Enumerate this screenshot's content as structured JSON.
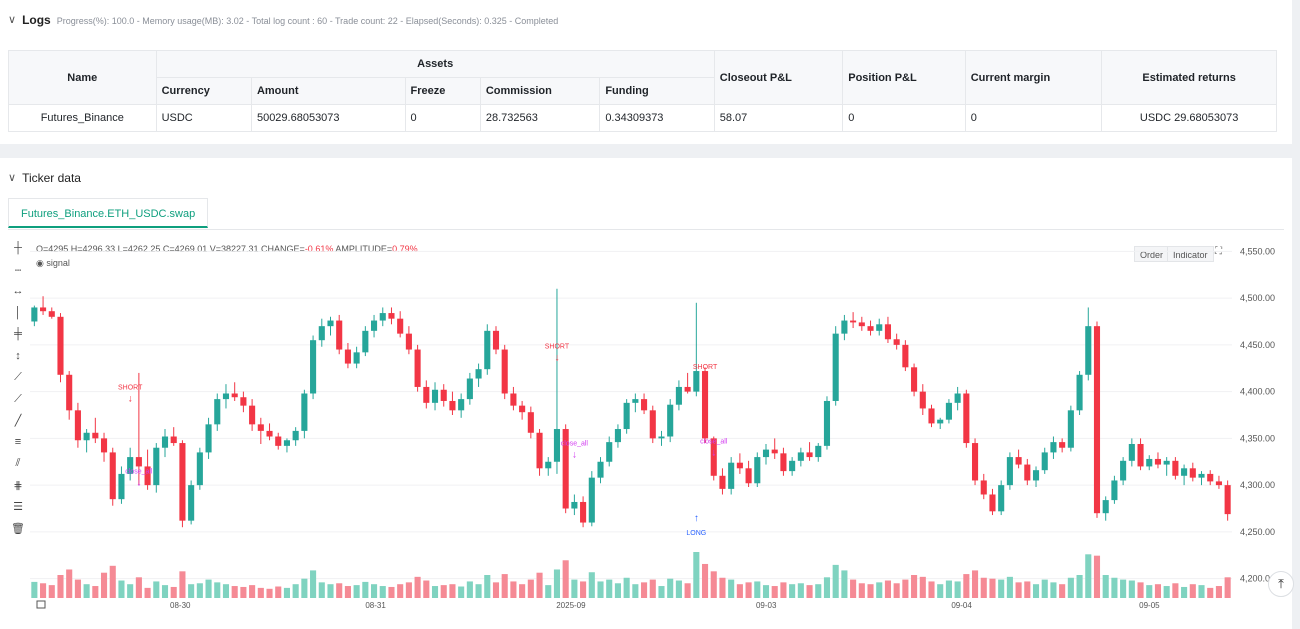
{
  "logs": {
    "title": "Logs",
    "meta": "Progress(%): 100.0  - Memory usage(MB): 3.02 - Total log count : 60 - Trade count:  22 - Elapsed(Seconds): 0.325 - Completed",
    "table": {
      "headers": {
        "name": "Name",
        "assets": "Assets",
        "currency": "Currency",
        "amount": "Amount",
        "freeze": "Freeze",
        "commission": "Commission",
        "funding": "Funding",
        "closeout": "Closeout P&L",
        "position": "Position P&L",
        "margin": "Current margin",
        "returns": "Estimated returns"
      },
      "row": {
        "name": "Futures_Binance",
        "currency": "USDC",
        "amount": "50029.68053073",
        "freeze": "0",
        "commission": "28.732563",
        "funding": "0.34309373",
        "closeout": "58.07",
        "position": "0",
        "margin": "0",
        "returns": "USDC 29.68053073"
      }
    }
  },
  "ticker": {
    "title": "Ticker data",
    "tab": "Futures_Binance.ETH_USDC.swap",
    "ohlc": {
      "o": "O=4295",
      "h": "H=4296.33",
      "l": "L=4262.25",
      "c": "C=4269.01",
      "v": "V=38227.31",
      "change_label": "CHANGE=",
      "change": "-0.61%",
      "amp_label": "AMPLITUDE=",
      "amp": "0.79%"
    },
    "signal_label": "signal",
    "buttons": {
      "order": "Order",
      "indicator": "Indicator"
    },
    "scroll_top_icon": "⤒"
  },
  "chart_data": {
    "type": "candlestick",
    "x_tick_labels": [
      "08-30",
      "08-31",
      "2025-09",
      "09-03",
      "09-04",
      "09-05"
    ],
    "y_tick_labels": [
      "4,550.00",
      "4,500.00",
      "4,450.00",
      "4,400.00",
      "4,350.00",
      "4,300.00",
      "4,250.00",
      "4,200.0"
    ],
    "ylim": [
      4190,
      4560
    ],
    "colors": {
      "up": "#26a69a",
      "down": "#f23645",
      "signal": "#d23ef0",
      "long": "#2962ff"
    },
    "annotations": [
      {
        "text": "SHORT",
        "index": 11,
        "price": 4398
      },
      {
        "text": "close_all",
        "index": 12,
        "price": 4308
      },
      {
        "text": "SHORT",
        "index": 60,
        "price": 4442
      },
      {
        "text": "close_all",
        "index": 62,
        "price": 4338
      },
      {
        "text": "SHORT",
        "index": 77,
        "price": 4420
      },
      {
        "text": "close_all",
        "index": 78,
        "price": 4340
      },
      {
        "text": "LONG",
        "index": 76,
        "price": 4253
      }
    ],
    "candles": [
      [
        4475,
        4492,
        4470,
        4490
      ],
      [
        4490,
        4502,
        4482,
        4486
      ],
      [
        4486,
        4490,
        4478,
        4480
      ],
      [
        4480,
        4484,
        4410,
        4418
      ],
      [
        4418,
        4422,
        4370,
        4380
      ],
      [
        4380,
        4388,
        4340,
        4348
      ],
      [
        4348,
        4360,
        4335,
        4356
      ],
      [
        4356,
        4372,
        4345,
        4350
      ],
      [
        4350,
        4356,
        4325,
        4335
      ],
      [
        4335,
        4340,
        4278,
        4285
      ],
      [
        4285,
        4320,
        4280,
        4312
      ],
      [
        4312,
        4340,
        4305,
        4330
      ],
      [
        4330,
        4420,
        4300,
        4320
      ],
      [
        4320,
        4338,
        4295,
        4300
      ],
      [
        4300,
        4345,
        4292,
        4340
      ],
      [
        4340,
        4360,
        4330,
        4352
      ],
      [
        4352,
        4362,
        4342,
        4345
      ],
      [
        4345,
        4348,
        4255,
        4262
      ],
      [
        4262,
        4305,
        4258,
        4300
      ],
      [
        4300,
        4340,
        4295,
        4335
      ],
      [
        4335,
        4372,
        4328,
        4365
      ],
      [
        4365,
        4398,
        4358,
        4392
      ],
      [
        4392,
        4408,
        4382,
        4398
      ],
      [
        4398,
        4410,
        4390,
        4394
      ],
      [
        4394,
        4400,
        4378,
        4385
      ],
      [
        4385,
        4392,
        4358,
        4365
      ],
      [
        4365,
        4372,
        4344,
        4358
      ],
      [
        4358,
        4366,
        4348,
        4352
      ],
      [
        4352,
        4356,
        4338,
        4342
      ],
      [
        4342,
        4350,
        4335,
        4348
      ],
      [
        4348,
        4362,
        4342,
        4358
      ],
      [
        4358,
        4402,
        4350,
        4398
      ],
      [
        4398,
        4460,
        4392,
        4455
      ],
      [
        4455,
        4478,
        4448,
        4470
      ],
      [
        4470,
        4480,
        4460,
        4476
      ],
      [
        4476,
        4482,
        4440,
        4445
      ],
      [
        4445,
        4452,
        4425,
        4430
      ],
      [
        4430,
        4448,
        4425,
        4442
      ],
      [
        4442,
        4470,
        4438,
        4465
      ],
      [
        4465,
        4482,
        4458,
        4476
      ],
      [
        4476,
        4490,
        4470,
        4484
      ],
      [
        4484,
        4490,
        4472,
        4478
      ],
      [
        4478,
        4486,
        4458,
        4462
      ],
      [
        4462,
        4470,
        4440,
        4445
      ],
      [
        4445,
        4450,
        4400,
        4405
      ],
      [
        4405,
        4412,
        4382,
        4388
      ],
      [
        4388,
        4410,
        4380,
        4402
      ],
      [
        4402,
        4408,
        4384,
        4390
      ],
      [
        4390,
        4400,
        4375,
        4380
      ],
      [
        4380,
        4398,
        4372,
        4392
      ],
      [
        4392,
        4420,
        4386,
        4414
      ],
      [
        4414,
        4430,
        4405,
        4424
      ],
      [
        4424,
        4472,
        4418,
        4465
      ],
      [
        4465,
        4470,
        4440,
        4445
      ],
      [
        4445,
        4450,
        4392,
        4398
      ],
      [
        4398,
        4405,
        4380,
        4385
      ],
      [
        4385,
        4390,
        4370,
        4378
      ],
      [
        4378,
        4384,
        4350,
        4356
      ],
      [
        4356,
        4360,
        4310,
        4318
      ],
      [
        4318,
        4330,
        4310,
        4325
      ],
      [
        4325,
        4510,
        4312,
        4360
      ],
      [
        4360,
        4365,
        4270,
        4275
      ],
      [
        4275,
        4290,
        4268,
        4282
      ],
      [
        4282,
        4288,
        4255,
        4260
      ],
      [
        4260,
        4315,
        4256,
        4308
      ],
      [
        4308,
        4330,
        4302,
        4325
      ],
      [
        4325,
        4352,
        4320,
        4346
      ],
      [
        4346,
        4365,
        4340,
        4360
      ],
      [
        4360,
        4392,
        4355,
        4388
      ],
      [
        4388,
        4398,
        4378,
        4392
      ],
      [
        4392,
        4398,
        4376,
        4380
      ],
      [
        4380,
        4385,
        4345,
        4350
      ],
      [
        4350,
        4358,
        4342,
        4352
      ],
      [
        4352,
        4392,
        4346,
        4386
      ],
      [
        4386,
        4412,
        4380,
        4405
      ],
      [
        4405,
        4420,
        4398,
        4400
      ],
      [
        4400,
        4495,
        4395,
        4422
      ],
      [
        4422,
        4426,
        4345,
        4350
      ],
      [
        4350,
        4352,
        4305,
        4310
      ],
      [
        4310,
        4318,
        4290,
        4296
      ],
      [
        4296,
        4330,
        4290,
        4324
      ],
      [
        4324,
        4334,
        4312,
        4318
      ],
      [
        4318,
        4326,
        4298,
        4302
      ],
      [
        4302,
        4335,
        4298,
        4330
      ],
      [
        4330,
        4344,
        4322,
        4338
      ],
      [
        4338,
        4350,
        4328,
        4334
      ],
      [
        4334,
        4340,
        4310,
        4315
      ],
      [
        4315,
        4330,
        4310,
        4326
      ],
      [
        4326,
        4340,
        4320,
        4335
      ],
      [
        4335,
        4346,
        4326,
        4330
      ],
      [
        4330,
        4345,
        4325,
        4342
      ],
      [
        4342,
        4395,
        4338,
        4390
      ],
      [
        4390,
        4470,
        4385,
        4462
      ],
      [
        4462,
        4482,
        4455,
        4476
      ],
      [
        4476,
        4485,
        4468,
        4474
      ],
      [
        4474,
        4480,
        4465,
        4470
      ],
      [
        4470,
        4476,
        4460,
        4465
      ],
      [
        4465,
        4478,
        4460,
        4472
      ],
      [
        4472,
        4480,
        4452,
        4456
      ],
      [
        4456,
        4462,
        4445,
        4450
      ],
      [
        4450,
        4455,
        4422,
        4426
      ],
      [
        4426,
        4430,
        4395,
        4400
      ],
      [
        4400,
        4408,
        4375,
        4382
      ],
      [
        4382,
        4386,
        4362,
        4366
      ],
      [
        4366,
        4372,
        4360,
        4370
      ],
      [
        4370,
        4392,
        4366,
        4388
      ],
      [
        4388,
        4405,
        4380,
        4398
      ],
      [
        4398,
        4402,
        4340,
        4345
      ],
      [
        4345,
        4350,
        4300,
        4305
      ],
      [
        4305,
        4312,
        4285,
        4290
      ],
      [
        4290,
        4296,
        4268,
        4272
      ],
      [
        4272,
        4305,
        4268,
        4300
      ],
      [
        4300,
        4335,
        4295,
        4330
      ],
      [
        4330,
        4338,
        4318,
        4322
      ],
      [
        4322,
        4328,
        4300,
        4305
      ],
      [
        4305,
        4320,
        4298,
        4316
      ],
      [
        4316,
        4340,
        4312,
        4335
      ],
      [
        4335,
        4352,
        4328,
        4346
      ],
      [
        4346,
        4350,
        4335,
        4340
      ],
      [
        4340,
        4385,
        4336,
        4380
      ],
      [
        4380,
        4422,
        4375,
        4418
      ],
      [
        4418,
        4490,
        4412,
        4470
      ],
      [
        4470,
        4475,
        4265,
        4270
      ],
      [
        4270,
        4288,
        4262,
        4284
      ],
      [
        4284,
        4310,
        4280,
        4305
      ],
      [
        4305,
        4330,
        4300,
        4326
      ],
      [
        4326,
        4350,
        4320,
        4344
      ],
      [
        4344,
        4350,
        4316,
        4320
      ],
      [
        4320,
        4332,
        4316,
        4328
      ],
      [
        4328,
        4335,
        4318,
        4322
      ],
      [
        4322,
        4330,
        4310,
        4326
      ],
      [
        4326,
        4330,
        4306,
        4310
      ],
      [
        4310,
        4322,
        4300,
        4318
      ],
      [
        4318,
        4324,
        4304,
        4308
      ],
      [
        4308,
        4315,
        4300,
        4312
      ],
      [
        4312,
        4316,
        4300,
        4304
      ],
      [
        4304,
        4310,
        4296,
        4300
      ],
      [
        4300,
        4305,
        4262,
        4269
      ]
    ],
    "volumes": [
      0.35,
      0.32,
      0.28,
      0.5,
      0.62,
      0.4,
      0.3,
      0.26,
      0.55,
      0.7,
      0.38,
      0.3,
      0.45,
      0.22,
      0.36,
      0.28,
      0.24,
      0.58,
      0.3,
      0.32,
      0.4,
      0.34,
      0.3,
      0.26,
      0.24,
      0.28,
      0.22,
      0.2,
      0.25,
      0.22,
      0.3,
      0.42,
      0.6,
      0.34,
      0.3,
      0.32,
      0.26,
      0.28,
      0.35,
      0.3,
      0.26,
      0.24,
      0.3,
      0.34,
      0.46,
      0.38,
      0.26,
      0.28,
      0.3,
      0.25,
      0.36,
      0.3,
      0.5,
      0.34,
      0.52,
      0.36,
      0.3,
      0.4,
      0.55,
      0.28,
      0.62,
      0.82,
      0.4,
      0.36,
      0.56,
      0.36,
      0.4,
      0.32,
      0.44,
      0.3,
      0.34,
      0.4,
      0.26,
      0.42,
      0.38,
      0.32,
      1.0,
      0.74,
      0.58,
      0.44,
      0.4,
      0.3,
      0.34,
      0.36,
      0.28,
      0.26,
      0.34,
      0.3,
      0.32,
      0.28,
      0.3,
      0.45,
      0.72,
      0.6,
      0.4,
      0.32,
      0.3,
      0.34,
      0.38,
      0.32,
      0.4,
      0.5,
      0.46,
      0.36,
      0.3,
      0.38,
      0.36,
      0.52,
      0.6,
      0.44,
      0.42,
      0.4,
      0.46,
      0.34,
      0.36,
      0.3,
      0.4,
      0.34,
      0.3,
      0.44,
      0.5,
      0.95,
      0.92,
      0.5,
      0.44,
      0.4,
      0.38,
      0.34,
      0.28,
      0.3,
      0.26,
      0.32,
      0.24,
      0.3,
      0.28,
      0.22,
      0.26,
      0.45
    ]
  }
}
